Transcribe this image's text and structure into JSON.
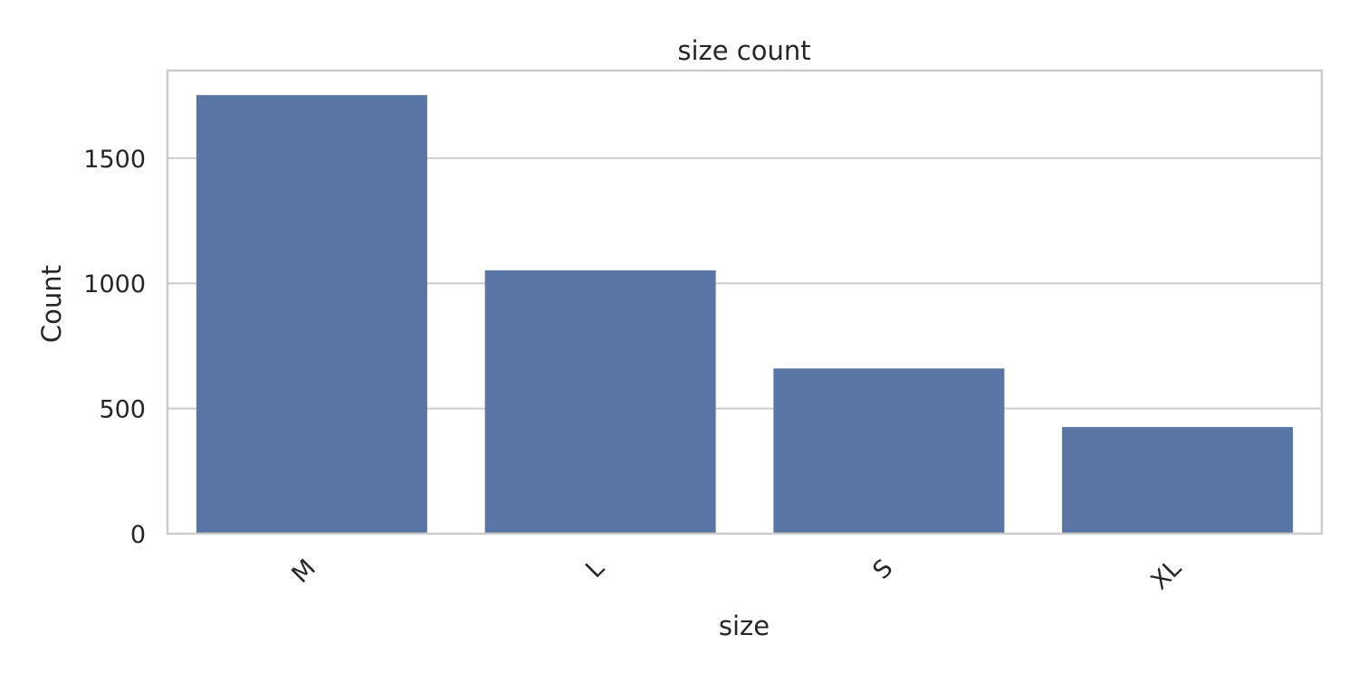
{
  "chart_data": {
    "type": "bar",
    "title": "size count",
    "xlabel": "size",
    "ylabel": "Count",
    "categories": [
      "M",
      "L",
      "S",
      "XL"
    ],
    "values": [
      1752,
      1052,
      660,
      426
    ],
    "ylim": [
      0,
      1850
    ],
    "yticks": [
      0,
      500,
      1000,
      1500
    ],
    "grid": "horizontal",
    "bar_color": "#5875a4",
    "grid_color": "#cccccc",
    "frame_color": "#cccccc"
  }
}
